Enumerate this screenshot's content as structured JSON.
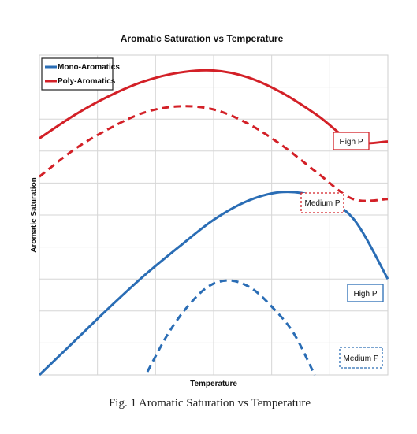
{
  "chart_data": {
    "type": "line",
    "title": "Aromatic Saturation vs Temperature",
    "xlabel": "Temperature",
    "ylabel": "Aromatic Saturation",
    "xlim": [
      0,
      10
    ],
    "ylim": [
      0,
      10
    ],
    "grid": true,
    "legend_position": "top-left",
    "legend": [
      {
        "name": "Mono-Aromatics",
        "color": "#2a6db5"
      },
      {
        "name": "Poly-Aromatics",
        "color": "#d32027"
      }
    ],
    "series": [
      {
        "name": "Poly-Aromatics",
        "pressure": "High P",
        "style": "solid",
        "color": "#d32027",
        "x": [
          0,
          1,
          2,
          3,
          4,
          5,
          6,
          7,
          8,
          9,
          10
        ],
        "y": [
          7.4,
          8.12,
          8.72,
          9.18,
          9.45,
          9.52,
          9.3,
          8.8,
          8.1,
          7.3,
          7.3
        ]
      },
      {
        "name": "Poly-Aromatics",
        "pressure": "Medium P",
        "style": "dashed",
        "color": "#d32027",
        "x": [
          0,
          1,
          2,
          3,
          4,
          5,
          6,
          7,
          8,
          9,
          10
        ],
        "y": [
          6.2,
          7.05,
          7.7,
          8.2,
          8.4,
          8.3,
          7.85,
          7.15,
          6.3,
          5.5,
          5.5
        ]
      },
      {
        "name": "Mono-Aromatics",
        "pressure": "High P",
        "style": "solid",
        "color": "#2a6db5",
        "x": [
          0,
          1,
          2,
          3,
          4,
          5,
          6,
          7,
          8,
          9,
          10
        ],
        "y": [
          0,
          1.05,
          2.1,
          3.1,
          4.0,
          4.85,
          5.45,
          5.72,
          5.55,
          4.9,
          3.0
        ]
      },
      {
        "name": "Mono-Aromatics",
        "pressure": "Medium P",
        "style": "dashed",
        "color": "#2a6db5",
        "x": [
          3.1,
          3.7,
          4.3,
          4.9,
          5.5,
          6.1,
          6.7,
          7.3,
          7.9
        ],
        "y": [
          0.1,
          1.3,
          2.2,
          2.8,
          2.95,
          2.7,
          2.1,
          1.3,
          0.0
        ]
      }
    ],
    "annotations": [
      {
        "text": "High P",
        "series": "Poly-Aromatics",
        "border": "solid",
        "color": "#d32027"
      },
      {
        "text": "Medium P",
        "series": "Poly-Aromatics",
        "border": "dashed",
        "color": "#d32027"
      },
      {
        "text": "High P",
        "series": "Mono-Aromatics",
        "border": "solid",
        "color": "#2a6db5"
      },
      {
        "text": "Medium P",
        "series": "Mono-Aromatics",
        "border": "dashed",
        "color": "#2a6db5"
      }
    ]
  },
  "caption": "Fig. 1 Aromatic Saturation vs Temperature"
}
